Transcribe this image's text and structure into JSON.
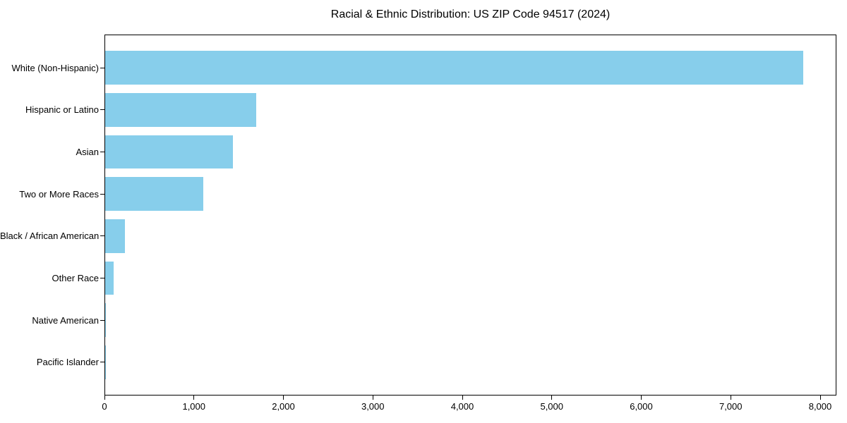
{
  "chart_data": {
    "type": "bar",
    "orientation": "horizontal",
    "title": "Racial & Ethnic Distribution: US ZIP Code 94517 (2024)",
    "categories": [
      "White (Non-Hispanic)",
      "Hispanic or Latino",
      "Asian",
      "Two or More Races",
      "Black / African American",
      "Other Race",
      "Native American",
      "Pacific Islander"
    ],
    "values": [
      7800,
      1690,
      1430,
      1100,
      220,
      95,
      10,
      5
    ],
    "xlabel": "",
    "ylabel": "",
    "xlim": [
      0,
      8200
    ],
    "x_ticks": [
      0,
      1000,
      2000,
      3000,
      4000,
      5000,
      6000,
      7000,
      8000
    ],
    "x_tick_labels": [
      "0",
      "1,000",
      "2,000",
      "3,000",
      "4,000",
      "5,000",
      "6,000",
      "7,000",
      "8,000"
    ],
    "bar_color": "#87CEEB",
    "grid": false,
    "legend": null
  }
}
